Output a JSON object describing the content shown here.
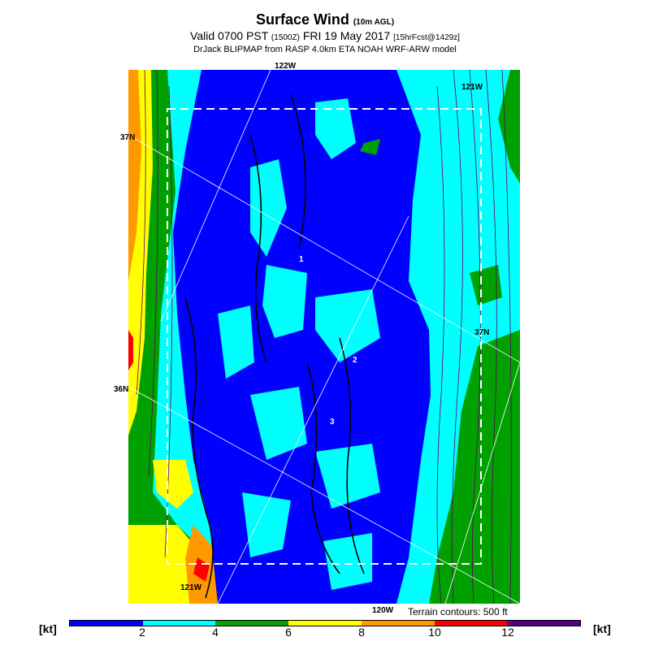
{
  "header": {
    "title": "Surface Wind",
    "title_sub": "(10m AGL)",
    "valid_a": "Valid 0700 PST",
    "valid_b": "(1500Z)",
    "valid_c": "FRI 19 May 2017",
    "valid_d": "[15hrFcst@1429z]",
    "source": "DrJack BLIPMAP from RASP 4.0km ETA NOAH WRF-ARW model"
  },
  "map": {
    "lon_labels": [
      "122W",
      "121W",
      "121W",
      "120W"
    ],
    "lat_labels": [
      "37N",
      "37N",
      "36N"
    ],
    "point_labels": [
      "1",
      "2",
      "3"
    ],
    "terrain_note": "Terrain contours: 500 ft"
  },
  "colorbar": {
    "unit": "[kt]",
    "ticks": [
      "2",
      "4",
      "6",
      "8",
      "10",
      "12"
    ],
    "colors": [
      "#0000ff",
      "#00ffff",
      "#00a000",
      "#ffff00",
      "#ff9900",
      "#ff0000",
      "#550088"
    ]
  },
  "palette": {
    "blue": "#0000ff",
    "cyan": "#00ffff",
    "green": "#00a000",
    "yellow": "#ffff00",
    "orange": "#ff9900",
    "red": "#ff0000",
    "contour": "#000000",
    "streamline": "#5b0060",
    "box": "#ffffff"
  }
}
